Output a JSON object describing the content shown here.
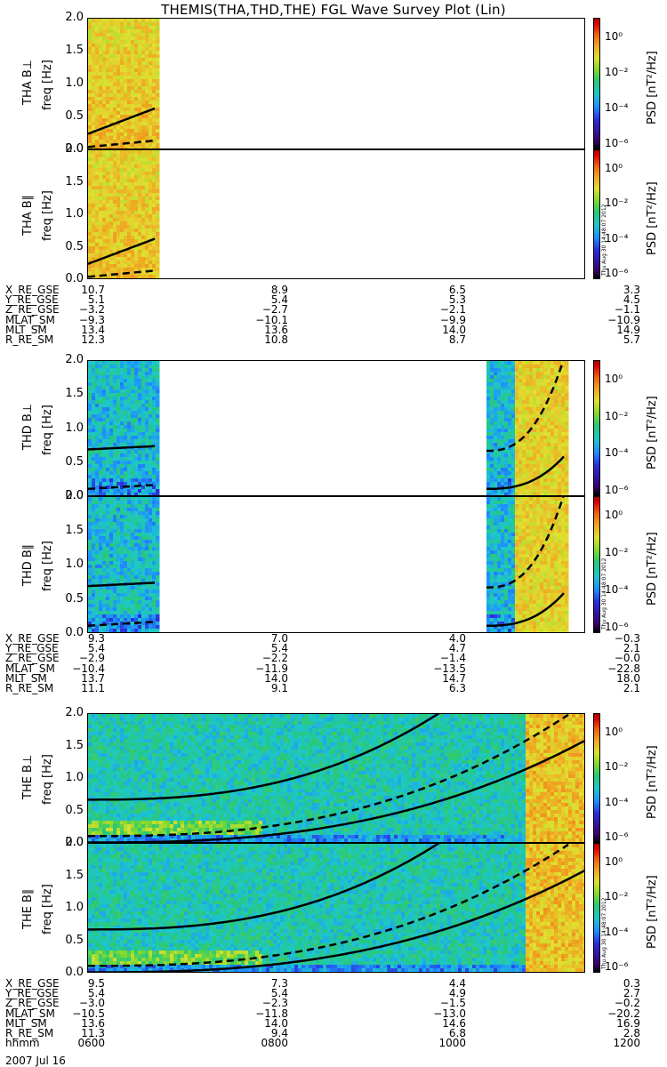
{
  "title": "THEMIS(THA,THD,THE) FGL Wave Survey Plot (Lin)",
  "panels": [
    {
      "id": "tha_bperp",
      "probe": "THA",
      "ylabel_a": "THA B⊥",
      "ylabel_b": "freq [Hz]",
      "cb_label": "PSD [nT²/Hz]"
    },
    {
      "id": "tha_bpar",
      "probe": "THA",
      "ylabel_a": "THA B∥",
      "ylabel_b": "freq [Hz]",
      "cb_label": "PSD [nT²/Hz]"
    },
    {
      "id": "thd_bperp",
      "probe": "THD",
      "ylabel_a": "THD B⊥",
      "ylabel_b": "freq [Hz]",
      "cb_label": "PSD [nT²/Hz]"
    },
    {
      "id": "thd_bpar",
      "probe": "THD",
      "ylabel_a": "THD B∥",
      "ylabel_b": "freq [Hz]",
      "cb_label": "PSD [nT²/Hz]"
    },
    {
      "id": "the_bperp",
      "probe": "THE",
      "ylabel_a": "THE B⊥",
      "ylabel_b": "freq [Hz]",
      "cb_label": "PSD [nT²/Hz]"
    },
    {
      "id": "the_bpar",
      "probe": "THE",
      "ylabel_a": "THE B∥",
      "ylabel_b": "freq [Hz]",
      "cb_label": "PSD [nT²/Hz]"
    }
  ],
  "colorbar_ticks": [
    "10⁰",
    "10⁻²",
    "10⁻⁴",
    "10⁻⁶"
  ],
  "timestamp": "Thu Aug 30 14:48:07 2012",
  "ephemeris": [
    {
      "probe": "THA",
      "labels": [
        "X_RE_GSE",
        "Y_RE_GSE",
        "Z_RE_GSE",
        "MLAT_SM",
        "MLT_SM",
        "R_RE_SM"
      ],
      "values": [
        [
          "10.7",
          "8.9",
          "6.5",
          "3.3"
        ],
        [
          "5.1",
          "5.4",
          "5.3",
          "4.5"
        ],
        [
          "−3.2",
          "−2.7",
          "−2.1",
          "−1.1"
        ],
        [
          "−9.3",
          "−10.1",
          "−9.9",
          "−10.9"
        ],
        [
          "13.4",
          "13.6",
          "14.0",
          "14.9"
        ],
        [
          "12.3",
          "10.8",
          "8.7",
          "5.7"
        ]
      ]
    },
    {
      "probe": "THD",
      "labels": [
        "X_RE_GSE",
        "Y_RE_GSE",
        "Z_RE_GSE",
        "MLAT_SM",
        "MLT_SM",
        "R_RE_SM"
      ],
      "values": [
        [
          "9.3",
          "7.0",
          "4.0",
          "−0.3"
        ],
        [
          "5.4",
          "5.4",
          "4.7",
          "2.1"
        ],
        [
          "−2.9",
          "−2.2",
          "−1.4",
          "−0.0"
        ],
        [
          "−10.4",
          "−11.9",
          "−13.5",
          "−22.8"
        ],
        [
          "13.7",
          "14.0",
          "14.7",
          "18.0"
        ],
        [
          "11.1",
          "9.1",
          "6.3",
          "2.1"
        ]
      ]
    },
    {
      "probe": "THE",
      "labels": [
        "X_RE_GSE",
        "Y_RE_GSE",
        "Z_RE_GSE",
        "MLAT_SM",
        "MLT_SM",
        "R_RE_SM",
        "hhmm"
      ],
      "values": [
        [
          "9.5",
          "7.3",
          "4.4",
          "0.3"
        ],
        [
          "5.4",
          "5.4",
          "4.9",
          "2.7"
        ],
        [
          "−3.0",
          "−2.3",
          "−1.5",
          "−0.2"
        ],
        [
          "−10.5",
          "−11.8",
          "−13.0",
          "−20.2"
        ],
        [
          "13.6",
          "14.0",
          "14.6",
          "16.9"
        ],
        [
          "11.3",
          "9.4",
          "6.8",
          "2.8"
        ],
        [
          "0600",
          "0800",
          "1000",
          "1200"
        ]
      ]
    }
  ],
  "date": "2007 Jul 16",
  "chart_data": {
    "type": "heatmap",
    "title": "THEMIS(THA,THD,THE) FGL Wave Survey Plot (Lin)",
    "xlabel": "hhmm",
    "x_ticks": [
      "0600",
      "0800",
      "1000",
      "1200"
    ],
    "xlim": [
      "0600",
      "1200"
    ],
    "ylabel": "freq [Hz]",
    "ylim": [
      0,
      2.0
    ],
    "y_ticks": [
      "0.0",
      "0.5",
      "1.0",
      "1.5",
      "2.0"
    ],
    "colorbar": {
      "label": "PSD [nT²/Hz]",
      "scale": "log",
      "range": [
        1e-07,
        10
      ],
      "ticks": [
        "10⁰",
        "10⁻²",
        "10⁻⁴",
        "10⁻⁶"
      ]
    },
    "coverage": {
      "THA": [
        [
          "0600",
          "0650"
        ]
      ],
      "THD": [
        [
          "0600",
          "0650"
        ],
        [
          "1048",
          "1145"
        ]
      ],
      "THE": [
        [
          "0600",
          "1200"
        ]
      ]
    }
  }
}
